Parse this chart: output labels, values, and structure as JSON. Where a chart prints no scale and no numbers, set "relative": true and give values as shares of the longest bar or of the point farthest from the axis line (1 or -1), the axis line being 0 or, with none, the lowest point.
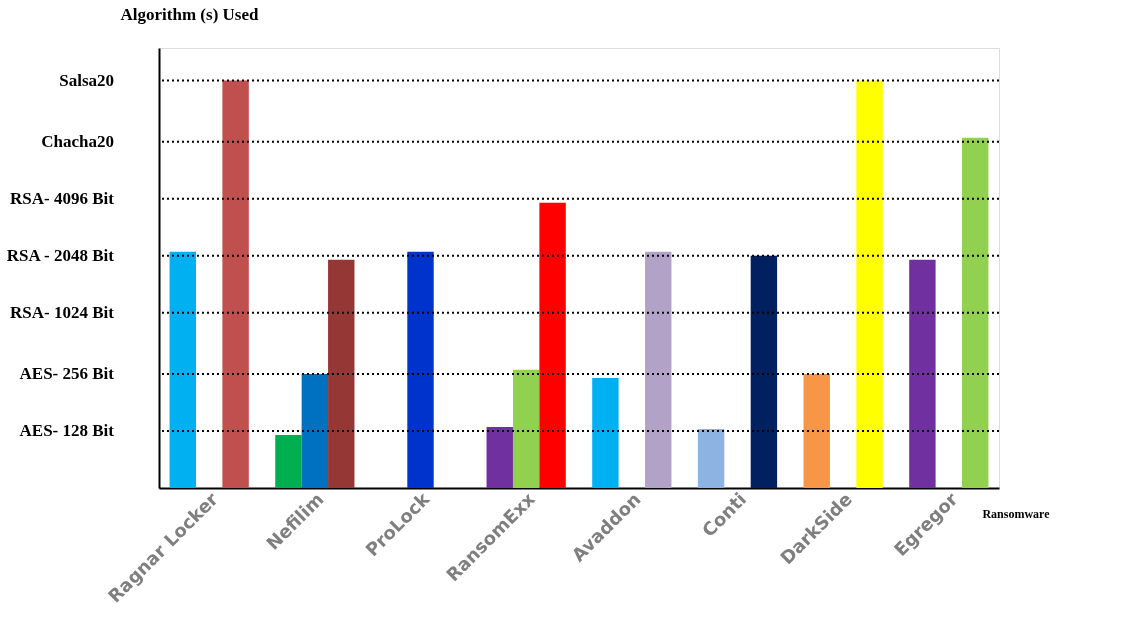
{
  "chart_data": {
    "type": "bar",
    "ylabel": "Algorithm (s) Used",
    "xlabel": "Ransomware",
    "relative": true,
    "categories": [
      "Ragnar Locker",
      "Nefilim",
      "ProLock",
      "RansomExx",
      "Avaddon",
      "Conti",
      "DarkSide",
      "Egregor"
    ],
    "series": [
      {
        "colors": [
          "#00b0f0",
          "#00b050",
          null,
          "#7030a0",
          "#00b0f0",
          "#8db3e2",
          "#f79646",
          "#7030a0"
        ],
        "values": [
          0.58,
          0.13,
          null,
          0.15,
          0.27,
          0.145,
          0.28,
          0.56
        ]
      },
      {
        "colors": [
          null,
          "#0070c0",
          "#0033cc",
          "#92d050",
          null,
          null,
          null,
          null
        ],
        "values": [
          null,
          0.28,
          0.58,
          0.29,
          null,
          null,
          null,
          null
        ]
      },
      {
        "colors": [
          "#c0504d",
          "#953735",
          null,
          "#ff0000",
          "#b3a2c7",
          "#002060",
          "#ffff00",
          "#92d050"
        ],
        "values": [
          1,
          0.56,
          null,
          0.7,
          0.58,
          0.57,
          1,
          0.86
        ]
      }
    ],
    "ref_lines": [
      {
        "axis": "y",
        "value": 0.14,
        "label": "AES- 128 Bit",
        "line_style": "dotted"
      },
      {
        "axis": "y",
        "value": 0.28,
        "label": "AES- 256 Bit",
        "line_style": "dotted"
      },
      {
        "axis": "y",
        "value": 0.43,
        "label": "RSA- 1024 Bit",
        "line_style": "dotted"
      },
      {
        "axis": "y",
        "value": 0.57,
        "label": "RSA - 2048 Bit",
        "line_style": "dotted"
      },
      {
        "axis": "y",
        "value": 0.71,
        "label": "RSA- 4096 Bit",
        "line_style": "dotted"
      },
      {
        "axis": "y",
        "value": 0.85,
        "label": "Chacha20",
        "line_style": "dotted"
      },
      {
        "axis": "y",
        "value": 1,
        "label": "Salsa20",
        "line_style": "dotted"
      }
    ]
  }
}
